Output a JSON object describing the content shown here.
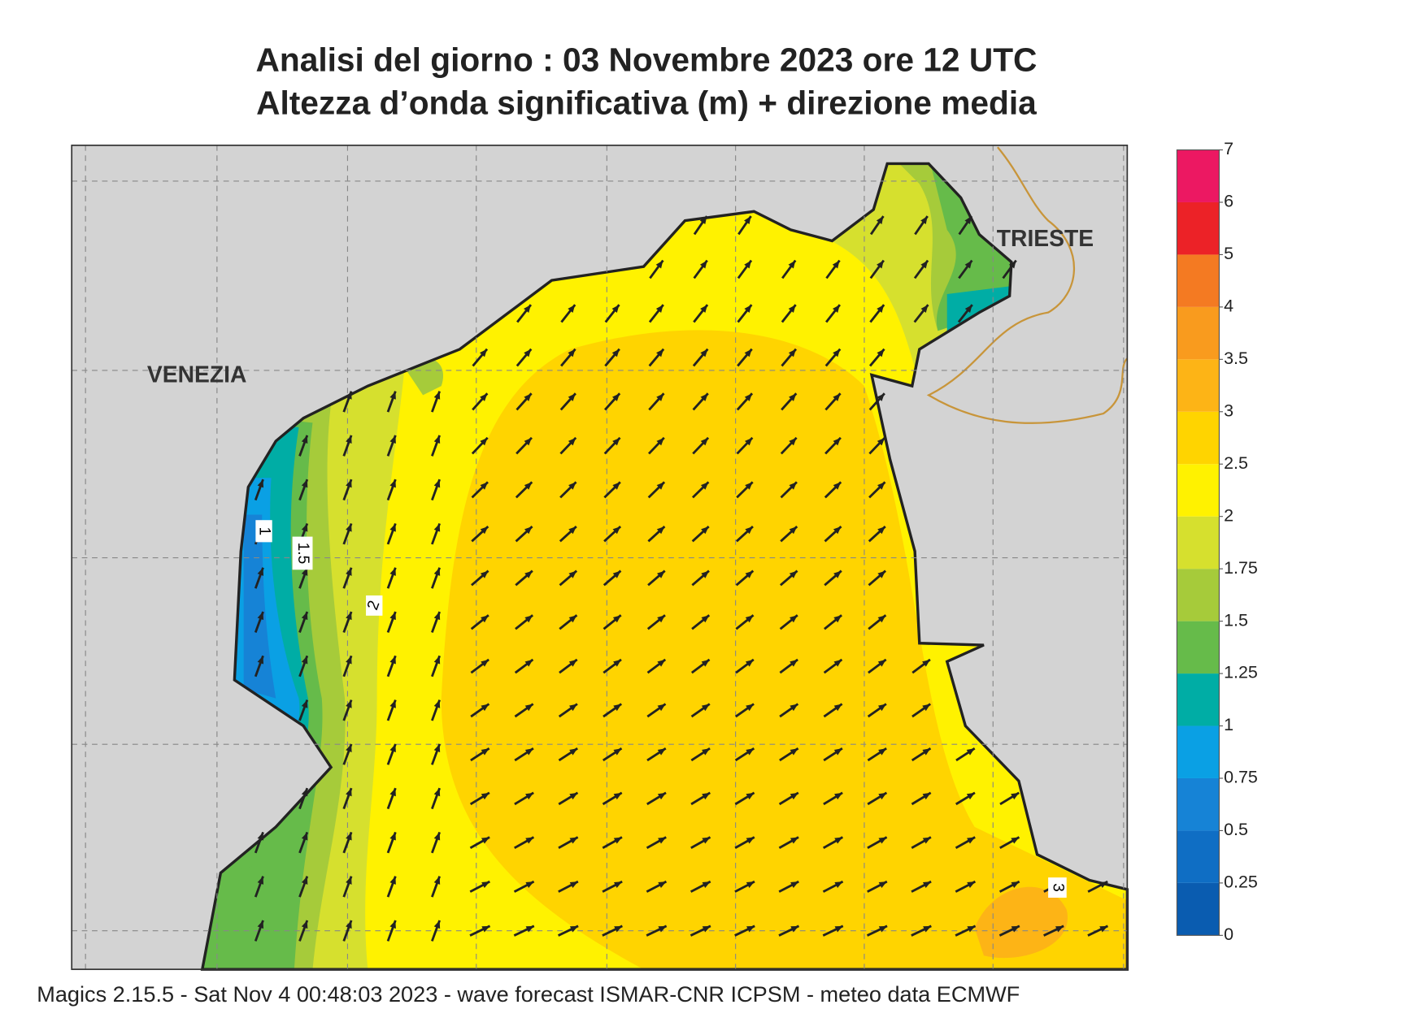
{
  "header": {
    "title": "Analisi del giorno :  03 Novembre  2023   ore 12 UTC",
    "subtitle": "Altezza d’onda significativa (m) + direzione media"
  },
  "places": [
    "VENEZIA",
    "TRIESTE"
  ],
  "contour_labels": [
    "1",
    "1.5",
    "2",
    "3"
  ],
  "legend": {
    "levels": [
      0,
      0.25,
      0.5,
      0.75,
      1,
      1.25,
      1.5,
      1.75,
      2,
      2.5,
      3,
      3.5,
      4,
      5,
      6,
      7
    ],
    "colors": [
      "#0a5cb0",
      "#0f6ec4",
      "#1683d6",
      "#0aa0e4",
      "#00ada5",
      "#66bb4a",
      "#a6cb3a",
      "#d6e02e",
      "#fff200",
      "#ffd400",
      "#fdb416",
      "#f99b1e",
      "#f47a22",
      "#ec2227",
      "#ec1862"
    ]
  },
  "footer": "Magics 2.15.5 - Sat Nov  4 00:48:03 2023 - wave forecast  ISMAR-CNR  ICPSM - meteo data    ECMWF"
}
